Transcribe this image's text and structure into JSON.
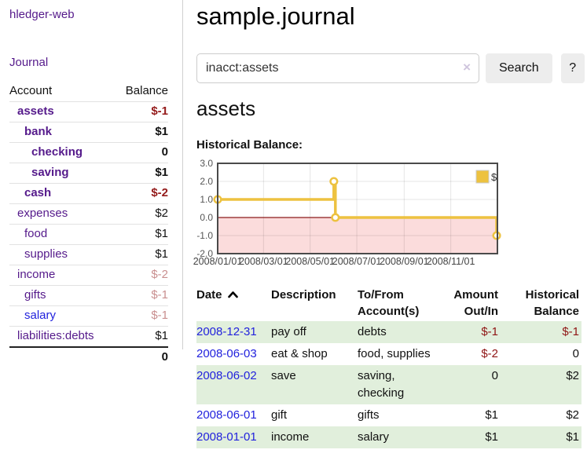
{
  "app": {
    "brand": "hledger-web",
    "nav_journal": "Journal"
  },
  "sidebar": {
    "accounts_header": {
      "account": "Account",
      "balance": "Balance"
    },
    "accounts": [
      {
        "name": "assets",
        "depth": 1,
        "matched": true,
        "balance": "$-1",
        "balance_kind": "neg-strong",
        "link_color": "purple"
      },
      {
        "name": "bank",
        "depth": 2,
        "matched": true,
        "balance": "$1",
        "balance_kind": "pos",
        "link_color": "purple"
      },
      {
        "name": "checking",
        "depth": 3,
        "matched": true,
        "balance": "0",
        "balance_kind": "pos",
        "link_color": "purple"
      },
      {
        "name": "saving",
        "depth": 3,
        "matched": true,
        "balance": "$1",
        "balance_kind": "pos",
        "link_color": "purple"
      },
      {
        "name": "cash",
        "depth": 2,
        "matched": true,
        "balance": "$-2",
        "balance_kind": "neg-strong",
        "link_color": "purple"
      },
      {
        "name": "expenses",
        "depth": 1,
        "matched": false,
        "balance": "$2",
        "balance_kind": "pos",
        "link_color": "purple"
      },
      {
        "name": "food",
        "depth": 2,
        "matched": false,
        "balance": "$1",
        "balance_kind": "pos",
        "link_color": "purple"
      },
      {
        "name": "supplies",
        "depth": 2,
        "matched": false,
        "balance": "$1",
        "balance_kind": "pos",
        "link_color": "purple"
      },
      {
        "name": "income",
        "depth": 1,
        "matched": false,
        "balance": "$-2",
        "balance_kind": "neg-dim",
        "link_color": "purple"
      },
      {
        "name": "gifts",
        "depth": 2,
        "matched": false,
        "balance": "$-1",
        "balance_kind": "neg-dim",
        "link_color": "purple"
      },
      {
        "name": "salary",
        "depth": 2,
        "matched": false,
        "balance": "$-1",
        "balance_kind": "neg-dim",
        "link_color": "blue"
      },
      {
        "name": "liabilities:debts",
        "depth": 1,
        "matched": false,
        "balance": "$1",
        "balance_kind": "pos",
        "link_color": "purple"
      }
    ],
    "total": "0"
  },
  "header": {
    "title": "sample.journal"
  },
  "search": {
    "value": "inacct:assets",
    "clear_icon": "×",
    "button": "Search",
    "help_button": "?"
  },
  "account_page": {
    "heading": "assets",
    "chart_label": "Historical Balance:"
  },
  "chart_data": {
    "type": "line",
    "title": "Historical Balance",
    "step": true,
    "ylim": [
      -2.0,
      3.0
    ],
    "y_ticks": [
      {
        "v": 3.0,
        "label": "3.0"
      },
      {
        "v": 2.0,
        "label": "2.0"
      },
      {
        "v": 1.0,
        "label": "1.0"
      },
      {
        "v": 0.0,
        "label": "0.0"
      },
      {
        "v": -1.0,
        "label": "-1.0"
      },
      {
        "v": -2.0,
        "label": "-2.0"
      }
    ],
    "x_ticks": [
      {
        "f": 0.0,
        "label": "2008/01/01"
      },
      {
        "f": 0.1639,
        "label": "2008/03/01"
      },
      {
        "f": 0.3306,
        "label": "2008/05/01"
      },
      {
        "f": 0.4973,
        "label": "2008/07/01"
      },
      {
        "f": 0.6667,
        "label": "2008/09/01"
      },
      {
        "f": 0.8333,
        "label": "2008/11/01"
      }
    ],
    "xlim_dates": [
      "2008/01/01",
      "2009/01/01"
    ],
    "series": [
      {
        "name": "$",
        "color": "#edc240",
        "points": [
          {
            "date": "2008/01/01",
            "f": 0.0,
            "y": 1.0
          },
          {
            "date": "2008/06/01",
            "f": 0.4153,
            "y": 2.0
          },
          {
            "date": "2008/06/03",
            "f": 0.4208,
            "y": 0.0
          },
          {
            "date": "2008/12/31",
            "f": 0.9973,
            "y": -1.0
          }
        ]
      }
    ],
    "legend": {
      "position": "top-right",
      "label": "$"
    },
    "grid": true,
    "colors": {
      "border": "#4a4a4a",
      "gridline": "rgba(0,0,0,0.10)",
      "zero_line": "#8b1a1a",
      "negative_fill": "#fbdcdc",
      "marker_fill": "#ffffff",
      "tick_label": "#555555",
      "x_label": "#444444"
    }
  },
  "register": {
    "columns": [
      {
        "line1": "Date",
        "line2": "",
        "align": "left",
        "sorted": "asc"
      },
      {
        "line1": "Description",
        "line2": "",
        "align": "left"
      },
      {
        "line1": "To/From",
        "line2": "Account(s)",
        "align": "left"
      },
      {
        "line1": "Amount",
        "line2": "Out/In",
        "align": "right"
      },
      {
        "line1": "Historical",
        "line2": "Balance",
        "align": "right"
      }
    ],
    "rows": [
      {
        "date": "2008-12-31",
        "description": "pay off",
        "accounts": "debts",
        "amount": "$-1",
        "amount_neg": true,
        "balance": "$-1",
        "balance_neg": true,
        "shaded": true
      },
      {
        "date": "2008-06-03",
        "description": "eat & shop",
        "accounts": "food, supplies",
        "amount": "$-2",
        "amount_neg": true,
        "balance": "0",
        "balance_neg": false,
        "shaded": false
      },
      {
        "date": "2008-06-02",
        "description": "save",
        "accounts": "saving, checking",
        "amount": "0",
        "amount_neg": false,
        "balance": "$2",
        "balance_neg": false,
        "shaded": true
      },
      {
        "date": "2008-06-01",
        "description": "gift",
        "accounts": "gifts",
        "amount": "$1",
        "amount_neg": false,
        "balance": "$2",
        "balance_neg": false,
        "shaded": false
      },
      {
        "date": "2008-01-01",
        "description": "income",
        "accounts": "salary",
        "amount": "$1",
        "amount_neg": false,
        "balance": "$1",
        "balance_neg": false,
        "shaded": true
      }
    ]
  }
}
